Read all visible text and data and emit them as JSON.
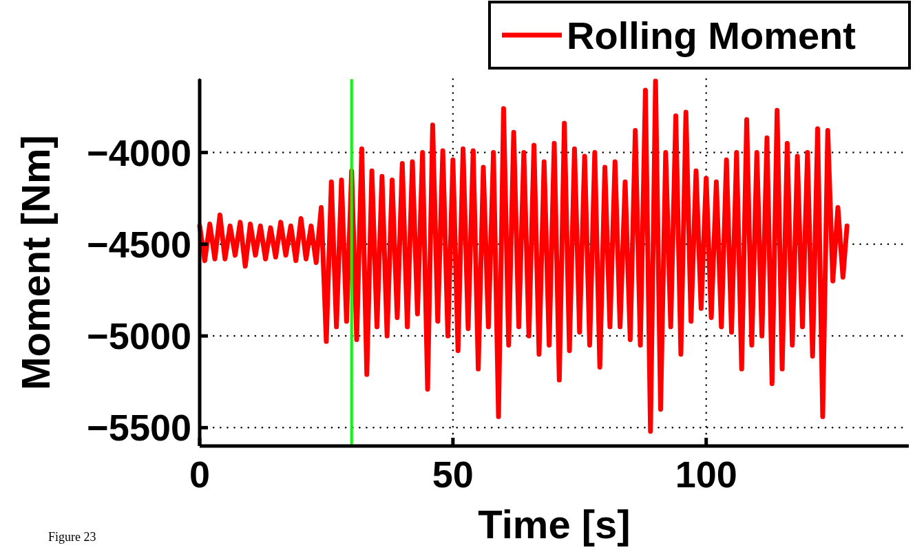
{
  "chart_data": {
    "type": "line",
    "xlabel": "Time [s]",
    "ylabel": "Moment [Nm]",
    "xlim": [
      0,
      140
    ],
    "xticks": [
      0,
      50,
      100
    ],
    "ylim": [
      -5600,
      -3600
    ],
    "yticks": [
      -4000,
      -4500,
      -5000,
      -5500
    ],
    "grid": true,
    "legend": "top right",
    "line_style": "solid",
    "annotations": [
      "Figure 23"
    ],
    "ref_lines": [
      {
        "axis": "x",
        "value": 30,
        "label": null,
        "color": "#00ff00"
      }
    ],
    "series": [
      {
        "name": "Rolling Moment",
        "color": "#ff0000",
        "x": [
          0,
          1,
          2,
          3,
          4,
          5,
          6,
          7,
          8,
          9,
          10,
          11,
          12,
          13,
          14,
          15,
          16,
          17,
          18,
          19,
          20,
          21,
          22,
          23,
          24,
          25,
          26,
          27,
          28,
          29,
          30,
          31,
          32,
          33,
          34,
          35,
          36,
          37,
          38,
          39,
          40,
          41,
          42,
          43,
          44,
          45,
          46,
          47,
          48,
          49,
          50,
          51,
          52,
          53,
          54,
          55,
          56,
          57,
          58,
          59,
          60,
          61,
          62,
          63,
          64,
          65,
          66,
          67,
          68,
          69,
          70,
          71,
          72,
          73,
          74,
          75,
          76,
          77,
          78,
          79,
          80,
          81,
          82,
          83,
          84,
          85,
          86,
          87,
          88,
          89,
          90,
          91,
          92,
          93,
          94,
          95,
          96,
          97,
          98,
          99,
          100,
          101,
          102,
          103,
          104,
          105,
          106,
          107,
          108,
          109,
          110,
          111,
          112,
          113,
          114,
          115,
          116,
          117,
          118,
          119,
          120,
          121,
          122,
          123,
          124,
          125,
          126,
          127,
          127.8
        ],
        "values": [
          -4400,
          -4590,
          -4390,
          -4580,
          -4340,
          -4580,
          -4400,
          -4560,
          -4380,
          -4620,
          -4390,
          -4560,
          -4400,
          -4580,
          -4410,
          -4570,
          -4380,
          -4560,
          -4400,
          -4590,
          -4360,
          -4580,
          -4400,
          -4600,
          -4300,
          -5030,
          -4160,
          -4950,
          -4150,
          -4920,
          -4100,
          -5020,
          -3980,
          -5210,
          -4100,
          -4950,
          -4130,
          -5000,
          -4150,
          -4900,
          -4060,
          -4950,
          -4050,
          -4880,
          -4000,
          -5290,
          -3850,
          -4920,
          -3990,
          -5000,
          -4040,
          -5080,
          -3980,
          -4960,
          -3990,
          -5180,
          -4080,
          -4950,
          -4000,
          -5440,
          -3760,
          -5050,
          -3890,
          -4950,
          -4000,
          -5000,
          -3960,
          -5100,
          -4050,
          -5050,
          -3950,
          -5240,
          -3840,
          -5080,
          -3980,
          -4980,
          -4020,
          -5050,
          -4000,
          -5170,
          -4080,
          -4950,
          -4050,
          -4950,
          -4160,
          -5020,
          -3880,
          -5050,
          -3660,
          -5520,
          -3610,
          -5400,
          -4000,
          -4950,
          -3800,
          -5100,
          -3780,
          -4920,
          -4100,
          -4850,
          -4140,
          -4900,
          -4160,
          -4950,
          -4040,
          -4980,
          -4000,
          -5180,
          -3820,
          -5050,
          -4000,
          -5000,
          -3920,
          -5260,
          -3770,
          -5180,
          -3950,
          -5050,
          -4020,
          -4950,
          -4000,
          -5110,
          -3870,
          -5440,
          -3880,
          -4700,
          -4300,
          -4680,
          -4400
        ]
      }
    ]
  }
}
